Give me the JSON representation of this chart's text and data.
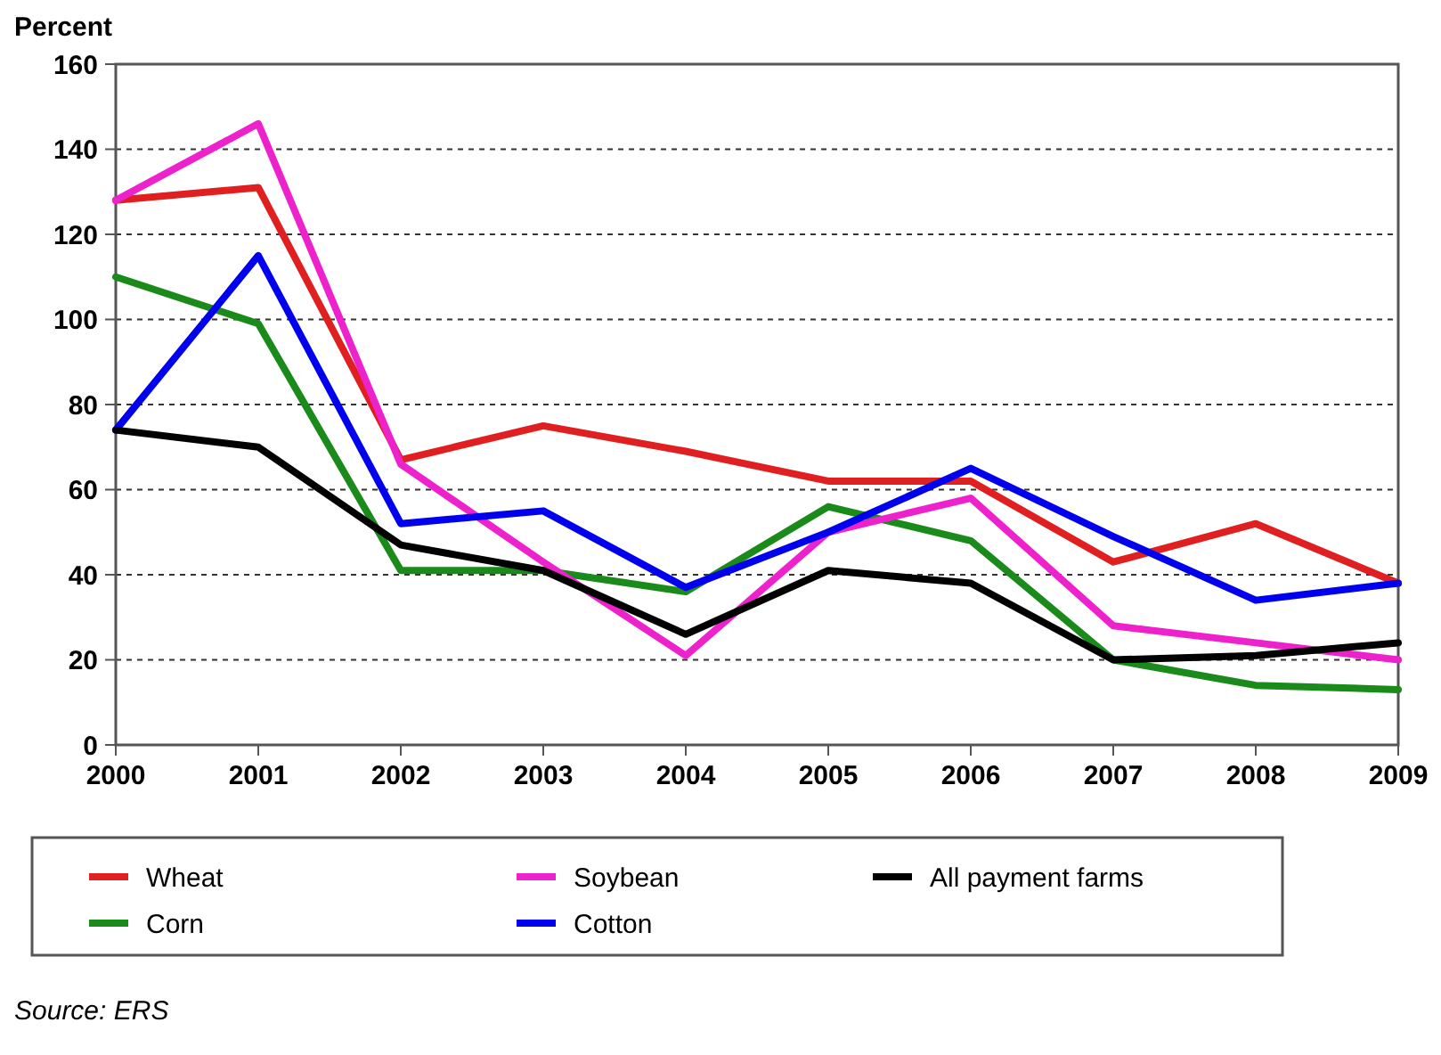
{
  "chart_data": {
    "type": "line",
    "ylabel": "Percent",
    "x": [
      2000,
      2001,
      2002,
      2003,
      2004,
      2005,
      2006,
      2007,
      2008,
      2009
    ],
    "xlim": [
      2000,
      2009
    ],
    "xticks": [
      2000,
      2001,
      2002,
      2003,
      2004,
      2005,
      2006,
      2007,
      2008,
      2009
    ],
    "ylim": [
      0,
      160
    ],
    "yticks": [
      0,
      20,
      40,
      60,
      80,
      100,
      120,
      140,
      160
    ],
    "grid": "y",
    "legend": "bottom",
    "marker": "none",
    "line_style": "solid",
    "annotations": [
      "Source: ERS"
    ],
    "series": [
      {
        "name": "Wheat",
        "color": "#e02020",
        "values": [
          128,
          131,
          67,
          75,
          69,
          62,
          62,
          43,
          52,
          38
        ]
      },
      {
        "name": "Corn",
        "color": "#1a8a1a",
        "values": [
          110,
          99,
          41,
          41,
          36,
          56,
          48,
          20,
          14,
          13
        ]
      },
      {
        "name": "Soybean",
        "color": "#ee22cc",
        "values": [
          128,
          146,
          66,
          43,
          21,
          50,
          58,
          28,
          24,
          20
        ]
      },
      {
        "name": "Cotton",
        "color": "#0000ee",
        "values": [
          74,
          115,
          52,
          55,
          37,
          50,
          65,
          49,
          34,
          38
        ]
      },
      {
        "name": "All payment farms",
        "color": "#000000",
        "values": [
          74,
          70,
          47,
          41,
          26,
          41,
          38,
          20,
          21,
          24
        ]
      }
    ]
  }
}
